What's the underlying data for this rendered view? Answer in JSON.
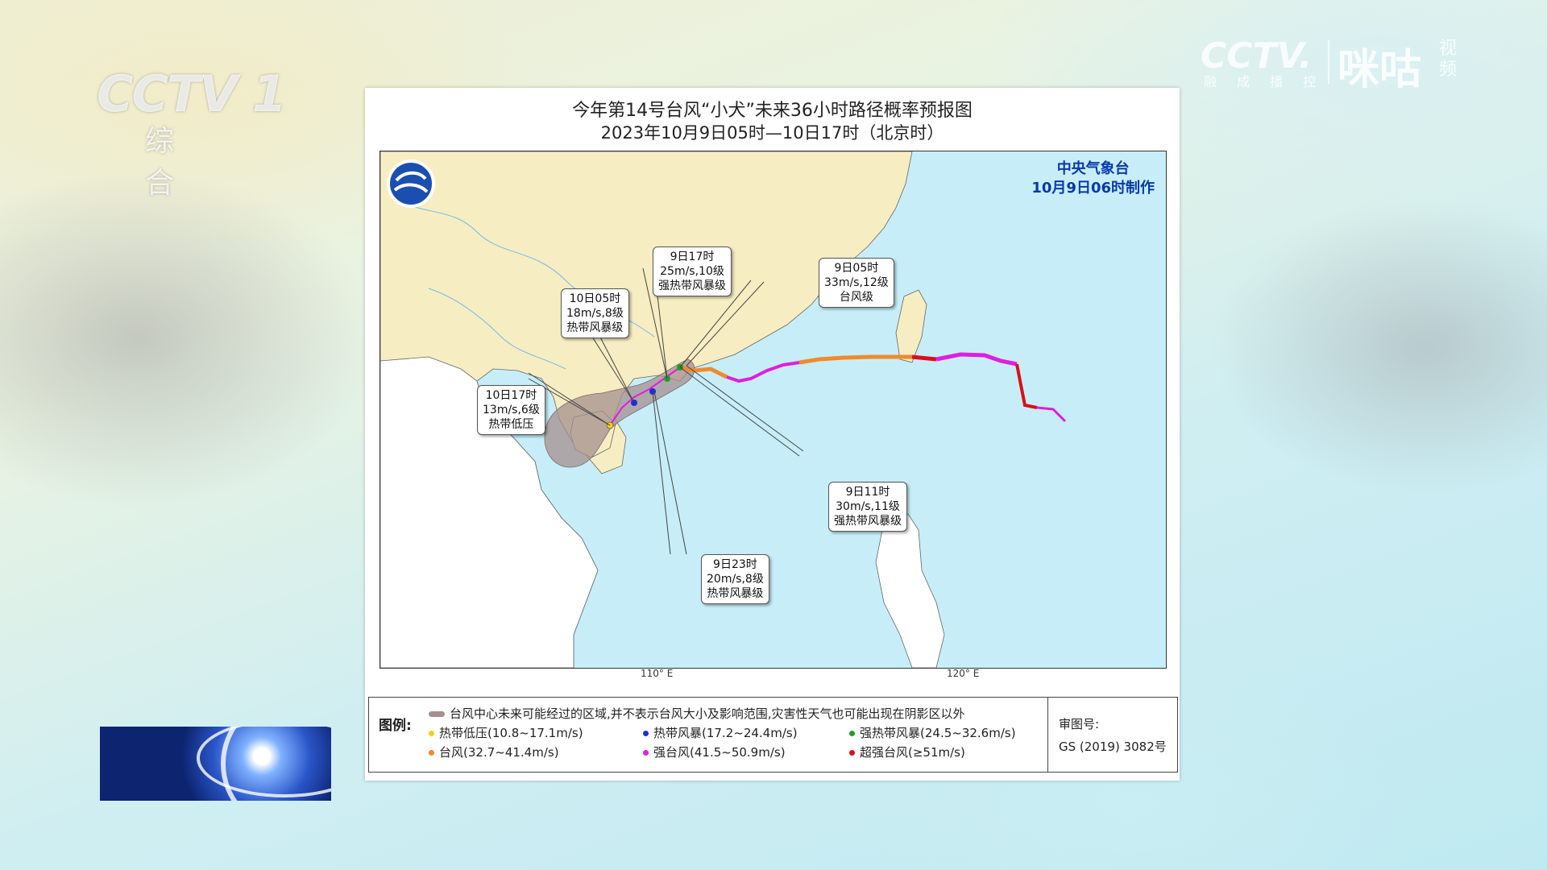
{
  "broadcast": {
    "channel_logo": "CCTV 1",
    "channel_sub": "综 合",
    "app_logo_left": "CCTV.",
    "app_logo_tag": "融 成 播 控",
    "app_logo_right": "咪咕",
    "app_logo_right_tag": "视频"
  },
  "map": {
    "title": "今年第14号台风“小犬”未来36小时路径概率预报图",
    "subtitle": "2023年10月9日05时—10日17时（北京时）",
    "issuer": "中央气象台",
    "issue_time": "10月9日06时制作",
    "longitude_ticks": [
      "110° E",
      "120° E"
    ],
    "callouts": [
      {
        "time": "10日17时",
        "wind": "13m/s,6级",
        "level": "热带低压"
      },
      {
        "time": "10日05时",
        "wind": "18m/s,8级",
        "level": "热带风暴级"
      },
      {
        "time": "9日17时",
        "wind": "25m/s,10级",
        "level": "强热带风暴级"
      },
      {
        "time": "9日05时",
        "wind": "33m/s,12级",
        "level": "台风级"
      },
      {
        "time": "9日11时",
        "wind": "30m/s,11级",
        "level": "强热带风暴级"
      },
      {
        "time": "9日23时",
        "wind": "20m/s,8级",
        "level": "热带风暴级"
      }
    ],
    "legend": {
      "label": "图例:",
      "cone_note": "台风中心未来可能经过的区域,并不表示台风大小及影响范围,灾害性天气也可能出现在阴影区以外",
      "items": [
        {
          "name": "热带低压(10.8~17.1m/s)",
          "color": "#f2d21a"
        },
        {
          "name": "热带风暴(17.2~24.4m/s)",
          "color": "#1a2fd6"
        },
        {
          "name": "强热带风暴(24.5~32.6m/s)",
          "color": "#1e9e2a"
        },
        {
          "name": "台风(32.7~41.4m/s)",
          "color": "#f08a2c"
        },
        {
          "name": "强台风(41.5~50.9m/s)",
          "color": "#e01ee0"
        },
        {
          "name": "超强台风(≥51m/s)",
          "color": "#d8101a"
        }
      ],
      "review_label": "审图号:",
      "review_number": "GS (2019) 3082号"
    }
  }
}
